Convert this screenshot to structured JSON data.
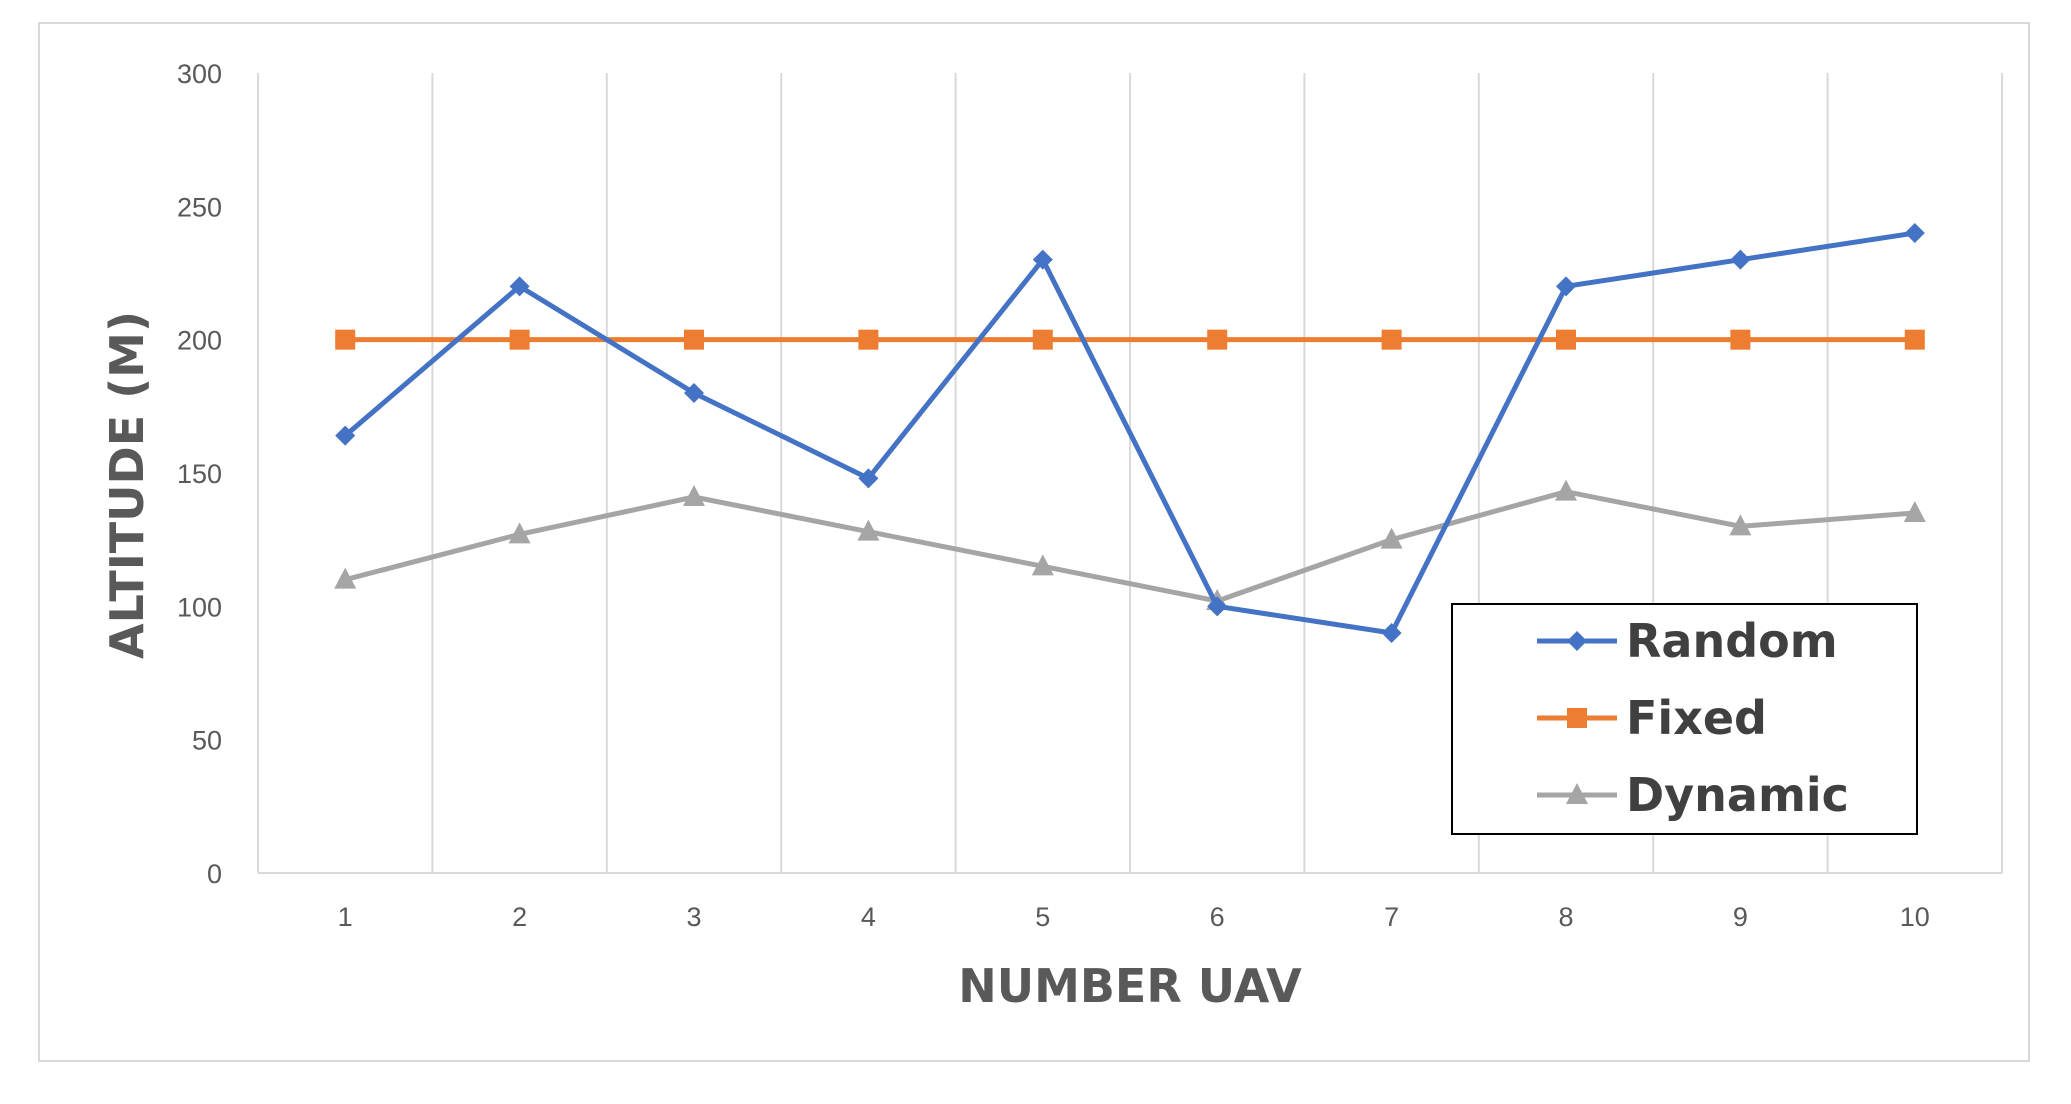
{
  "chart_data": {
    "type": "line",
    "title": "",
    "xlabel": "NUMBER UAV",
    "ylabel": "ALTITUDE (M)",
    "categories": [
      "1",
      "2",
      "3",
      "4",
      "5",
      "6",
      "7",
      "8",
      "9",
      "10"
    ],
    "ylim": [
      0,
      300
    ],
    "yticks": [
      0,
      50,
      100,
      150,
      200,
      250,
      300
    ],
    "grid": "vertical",
    "legend_position": "bottom-right",
    "series": [
      {
        "name": "Random",
        "color": "#4472c4",
        "marker": "diamond",
        "values": [
          164,
          220,
          180,
          148,
          230,
          100,
          90,
          220,
          230,
          240
        ]
      },
      {
        "name": "Fixed",
        "color": "#ed7d31",
        "marker": "square",
        "values": [
          200,
          200,
          200,
          200,
          200,
          200,
          200,
          200,
          200,
          200
        ]
      },
      {
        "name": "Dynamic",
        "color": "#a5a5a5",
        "marker": "triangle",
        "values": [
          110,
          127,
          141,
          128,
          115,
          102,
          125,
          143,
          130,
          135
        ]
      }
    ]
  }
}
